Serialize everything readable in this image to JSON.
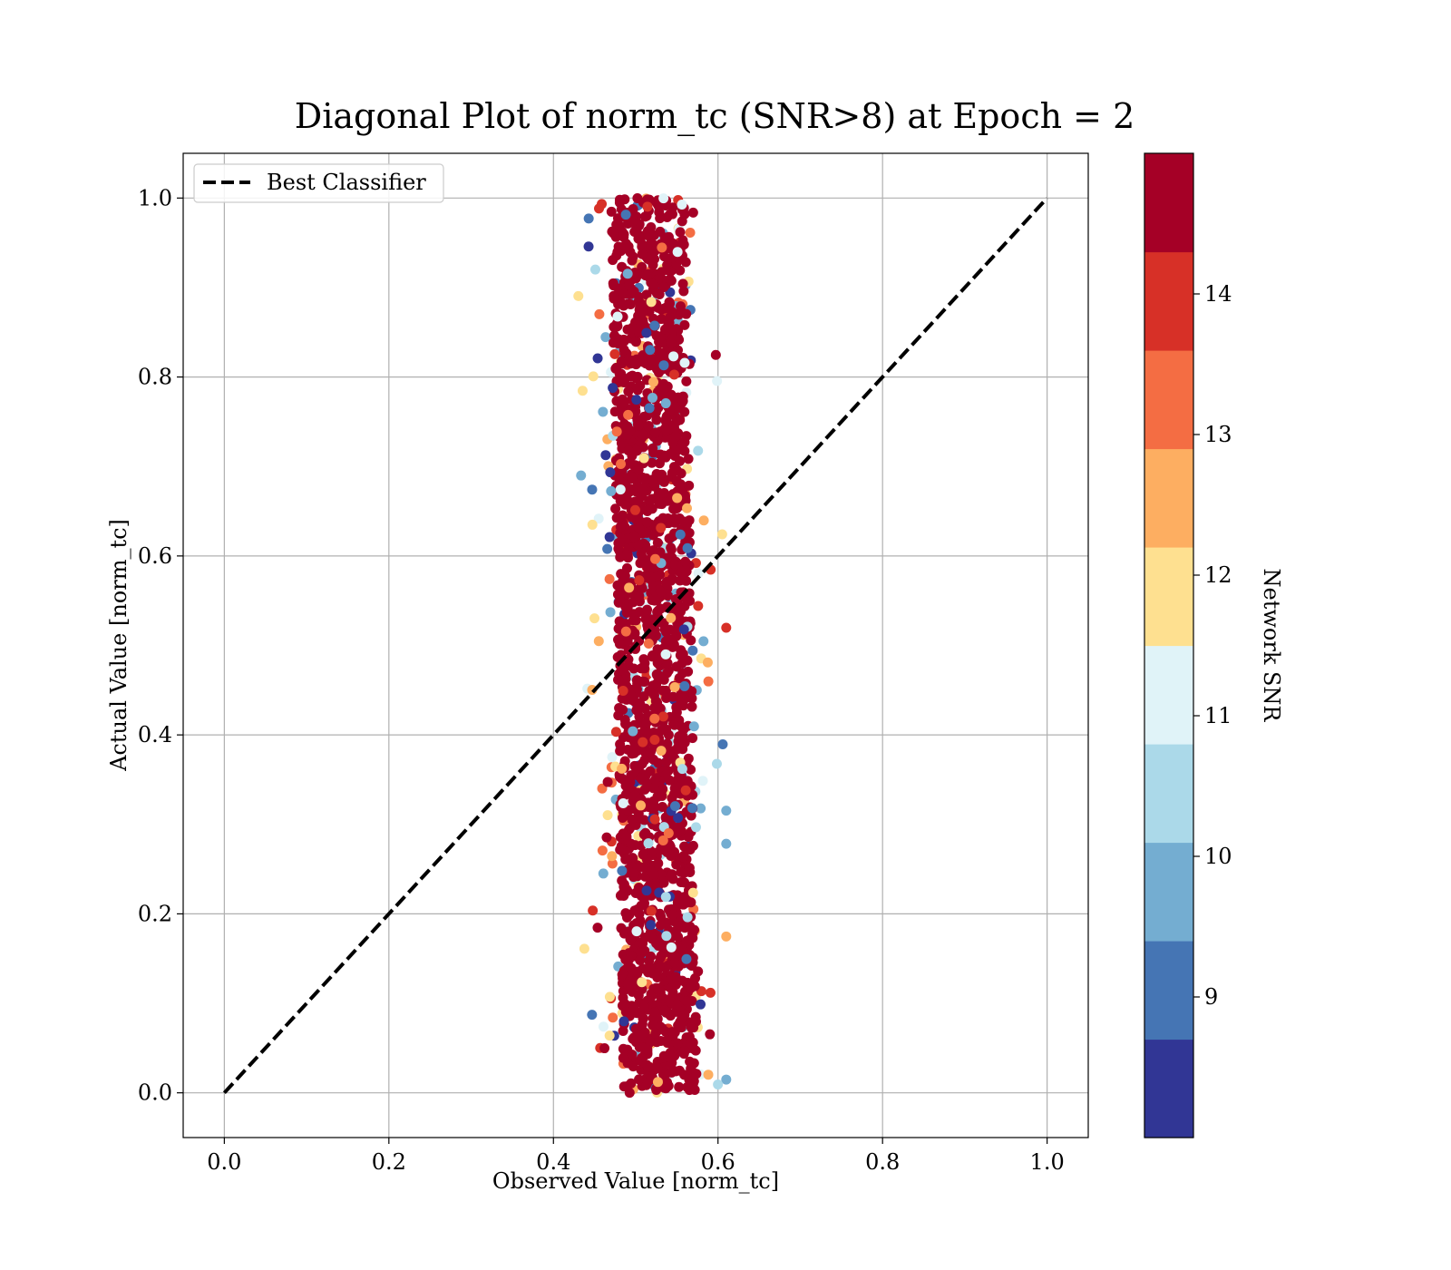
{
  "chart_data": {
    "type": "scatter",
    "title": "Diagonal Plot of norm_tc (SNR>8) at Epoch = 2",
    "xlabel": "Observed Value [norm_tc]",
    "ylabel": "Actual Value [norm_tc]",
    "xlim": [
      -0.05,
      1.05
    ],
    "ylim": [
      -0.05,
      1.05
    ],
    "xticks": [
      0.0,
      0.2,
      0.4,
      0.6,
      0.8,
      1.0
    ],
    "yticks": [
      0.0,
      0.2,
      0.4,
      0.6,
      0.8,
      1.0
    ],
    "xtick_labels": [
      "0.0",
      "0.2",
      "0.4",
      "0.6",
      "0.8",
      "1.0"
    ],
    "ytick_labels": [
      "0.0",
      "0.2",
      "0.4",
      "0.6",
      "0.8",
      "1.0"
    ],
    "grid": true,
    "legend": {
      "position": "top-left",
      "entries": [
        {
          "label": "Best Classifier",
          "style": "dashed",
          "color": "#000000"
        }
      ]
    },
    "reference_line": {
      "name": "Best Classifier",
      "x": [
        0.0,
        1.0
      ],
      "y": [
        0.0,
        1.0
      ]
    },
    "scatter_cloud": {
      "x_center_at_y0": 0.53,
      "x_center_at_y1": 0.515,
      "core_half_width": 0.045,
      "outlier_x_range": [
        0.42,
        0.61
      ],
      "y_range": [
        0.0,
        1.0
      ],
      "dominant_snr": 14.8
    },
    "colorbar": {
      "label": "Network SNR",
      "range": [
        8.0,
        15.0
      ],
      "ticks": [
        9,
        10,
        11,
        12,
        13,
        14
      ],
      "tick_labels": [
        "9",
        "10",
        "11",
        "12",
        "13",
        "14"
      ],
      "bins": [
        {
          "from": 8.0,
          "to": 8.7,
          "color": "#313695"
        },
        {
          "from": 8.7,
          "to": 9.4,
          "color": "#4575b4"
        },
        {
          "from": 9.4,
          "to": 10.1,
          "color": "#74add1"
        },
        {
          "from": 10.1,
          "to": 10.8,
          "color": "#abd9e9"
        },
        {
          "from": 10.8,
          "to": 11.5,
          "color": "#e0f3f8"
        },
        {
          "from": 11.5,
          "to": 12.2,
          "color": "#fee090"
        },
        {
          "from": 12.2,
          "to": 12.9,
          "color": "#fdae61"
        },
        {
          "from": 12.9,
          "to": 13.6,
          "color": "#f46d43"
        },
        {
          "from": 13.6,
          "to": 14.3,
          "color": "#d73027"
        },
        {
          "from": 14.3,
          "to": 15.0,
          "color": "#a50026"
        }
      ]
    }
  }
}
